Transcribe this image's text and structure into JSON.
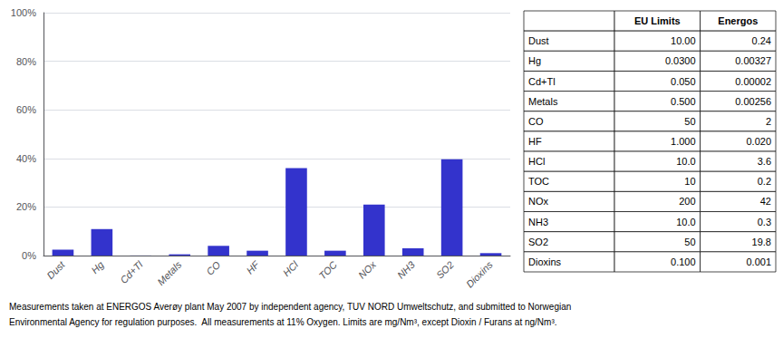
{
  "chart_data": {
    "type": "bar",
    "categories": [
      "Dust",
      "Hg",
      "Cd+Tl",
      "Metals",
      "CO",
      "HF",
      "HCl",
      "TOC",
      "NOx",
      "NH3",
      "SO2",
      "Dioxins"
    ],
    "values": [
      2.4,
      10.9,
      0.04,
      0.512,
      4,
      2,
      36,
      2,
      21,
      3,
      39.6,
      1
    ],
    "color": "#3333cc",
    "ylim": [
      0,
      100
    ],
    "yticks": [
      {
        "value": 0,
        "label": "0%"
      },
      {
        "value": 20,
        "label": "20%"
      },
      {
        "value": 40,
        "label": "40%"
      },
      {
        "value": 60,
        "label": "60%"
      },
      {
        "value": 80,
        "label": "80%"
      },
      {
        "value": 100,
        "label": "100%"
      }
    ],
    "grid": true,
    "table": {
      "columns": [
        "EU Limits",
        "Energos"
      ],
      "rows": [
        [
          "Dust",
          "10.00",
          "0.24"
        ],
        [
          "Hg",
          "0.0300",
          "0.00327"
        ],
        [
          "Cd+Tl",
          "0.050",
          "0.00002"
        ],
        [
          "Metals",
          "0.500",
          "0.00256"
        ],
        [
          "CO",
          "50",
          "2"
        ],
        [
          "HF",
          "1.000",
          "0.020"
        ],
        [
          "HCl",
          "10.0",
          "3.6"
        ],
        [
          "TOC",
          "10",
          "0.2"
        ],
        [
          "NOx",
          "200",
          "42"
        ],
        [
          "NH3",
          "10.0",
          "0.3"
        ],
        [
          "SO2",
          "50",
          "19.8"
        ],
        [
          "Dioxins",
          "0.100",
          "0.001"
        ]
      ]
    },
    "annotations": [
      "Measurements taken at ENERGOS Averøy plant May 2007 by independent agency, TUV NORD Umweltschutz, and submitted to Norwegian",
      "Environmental Agency for regulation purposes.  All measurements at 11% Oxygen. Limits are mg/Nm³, except Dioxin / Furans at ng/Nm³."
    ]
  }
}
